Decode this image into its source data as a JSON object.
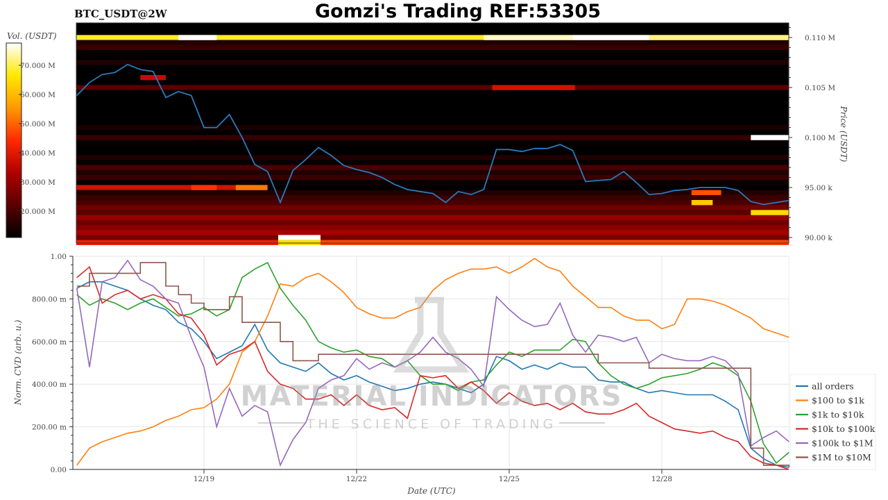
{
  "title": "Gomzi's Trading REF:53305",
  "subtitle": "BTC_USDT@2W",
  "watermark": {
    "line1": "MATERIAL INDICATORS",
    "line2": "THE SCIENCE OF TRADING",
    "icon": "flask-icon"
  },
  "chart_data": [
    {
      "type": "heatmap",
      "ylabel": "Price (USDT)",
      "colorbar_label": "Vol. (USDT)",
      "colorbar_ticks": [
        "20.000 M",
        "30.000 M",
        "40.000 M",
        "50.000 M",
        "60.000 M",
        "70.000 M"
      ],
      "colorbar_range_M": [
        11,
        77.6
      ],
      "colorscale": [
        "#000000",
        "#5a0000",
        "#b00000",
        "#ff2a00",
        "#ff9a00",
        "#ffe800",
        "#ffffff"
      ],
      "ylim_k": [
        89.4,
        111.5
      ],
      "yticks": [
        {
          "value": 110,
          "label": "0.110 M"
        },
        {
          "value": 105,
          "label": "0.105 M"
        },
        {
          "value": 100,
          "label": "0.100 M"
        },
        {
          "value": 95,
          "label": "95.00 k"
        },
        {
          "value": 90,
          "label": "90.00 k"
        }
      ],
      "xlim": [
        "12-16 12:00",
        "12-30 12:00"
      ],
      "levels_k": [
        111.0,
        110.5,
        110.0,
        109.5,
        109.0,
        108.5,
        108.0,
        107.5,
        107.0,
        106.5,
        106.0,
        105.5,
        105.0,
        104.5,
        104.0,
        103.5,
        103.0,
        102.5,
        102.0,
        101.5,
        101.0,
        100.5,
        100.0,
        99.5,
        99.0,
        98.5,
        98.0,
        97.5,
        97.0,
        96.5,
        96.0,
        95.5,
        95.0,
        94.5,
        94.0,
        93.5,
        93.0,
        92.5,
        92.0,
        91.5,
        91.0,
        90.5,
        90.0,
        89.5
      ],
      "base_volume_M": [
        8,
        10,
        68,
        15,
        18,
        12,
        10,
        15,
        6,
        8,
        10,
        5,
        22,
        8,
        10,
        5,
        8,
        4,
        10,
        6,
        14,
        8,
        18,
        12,
        10,
        8,
        15,
        12,
        20,
        15,
        18,
        12,
        38,
        15,
        18,
        20,
        25,
        22,
        30,
        25,
        28,
        32,
        26,
        42
      ],
      "segments": [
        {
          "level": 110.0,
          "from": "12-18 12:00",
          "to": "12-19 06:00",
          "volume_M": 80
        },
        {
          "level": 110.0,
          "from": "12-24 12:00",
          "to": "12-26 06:00",
          "volume_M": 75
        },
        {
          "level": 110.0,
          "from": "12-26 06:00",
          "to": "12-27 18:00",
          "volume_M": 80
        },
        {
          "level": 110.0,
          "from": "12-27 18:00",
          "to": "12-30 12:00",
          "volume_M": 72
        },
        {
          "level": 105.0,
          "from": "12-24 16:00",
          "to": "12-26 07:00",
          "volume_M": 38
        },
        {
          "level": 106.0,
          "from": "12-17 18:00",
          "to": "12-18 06:00",
          "volume_M": 36
        },
        {
          "level": 100.0,
          "from": "12-29 18:00",
          "to": "12-30 12:00",
          "volume_M": 80
        },
        {
          "level": 95.0,
          "from": "12-18 18:00",
          "to": "12-19 06:00",
          "volume_M": 45
        },
        {
          "level": 95.0,
          "from": "12-19 15:00",
          "to": "12-20 06:00",
          "volume_M": 52
        },
        {
          "level": 95.0,
          "from": "12-20 06:00",
          "to": "12-30 12:00",
          "volume_M": 8
        },
        {
          "level": 94.5,
          "from": "12-28 14:00",
          "to": "12-29 04:00",
          "volume_M": 48
        },
        {
          "level": 93.5,
          "from": "12-28 14:00",
          "to": "12-29 00:00",
          "volume_M": 62
        },
        {
          "level": 92.5,
          "from": "12-29 18:00",
          "to": "12-30 12:00",
          "volume_M": 65
        },
        {
          "level": 90.0,
          "from": "12-20 11:00",
          "to": "12-21 07:00",
          "volume_M": 80
        },
        {
          "level": 89.5,
          "from": "12-20 11:00",
          "to": "12-21 07:00",
          "volume_M": 65
        },
        {
          "level": 89.5,
          "from": "12-21 07:00",
          "to": "12-30 12:00",
          "volume_M": 47
        }
      ],
      "price_series": {
        "color": "#2b7bba",
        "x": [
          "12-16 12:00",
          "12-16 18:00",
          "12-17 00:00",
          "12-17 06:00",
          "12-17 12:00",
          "12-17 18:00",
          "12-18 00:00",
          "12-18 06:00",
          "12-18 12:00",
          "12-18 18:00",
          "12-19 00:00",
          "12-19 06:00",
          "12-19 12:00",
          "12-19 18:00",
          "12-20 00:00",
          "12-20 06:00",
          "12-20 12:00",
          "12-20 18:00",
          "12-21 00:00",
          "12-21 06:00",
          "12-21 12:00",
          "12-21 18:00",
          "12-22 00:00",
          "12-22 06:00",
          "12-22 12:00",
          "12-22 18:00",
          "12-23 00:00",
          "12-23 06:00",
          "12-23 12:00",
          "12-23 18:00",
          "12-24 00:00",
          "12-24 06:00",
          "12-24 12:00",
          "12-24 18:00",
          "12-25 00:00",
          "12-25 06:00",
          "12-25 12:00",
          "12-25 18:00",
          "12-26 00:00",
          "12-26 06:00",
          "12-26 12:00",
          "12-26 18:00",
          "12-27 00:00",
          "12-27 06:00",
          "12-27 12:00",
          "12-27 18:00",
          "12-28 00:00",
          "12-28 06:00",
          "12-28 12:00",
          "12-28 18:00",
          "12-29 00:00",
          "12-29 06:00",
          "12-29 12:00",
          "12-29 18:00",
          "12-30 00:00",
          "12-30 06:00",
          "12-30 12:00"
        ],
        "values_k": [
          104.2,
          105.5,
          106.3,
          106.5,
          107.3,
          106.8,
          106.6,
          104.0,
          104.6,
          104.2,
          101.0,
          101.0,
          102.3,
          100.0,
          97.3,
          96.6,
          93.5,
          96.7,
          97.8,
          99.0,
          98.2,
          97.2,
          96.8,
          96.5,
          96.0,
          95.3,
          94.8,
          94.6,
          94.4,
          93.5,
          94.6,
          94.3,
          94.8,
          98.8,
          98.8,
          98.6,
          98.9,
          98.9,
          99.3,
          98.7,
          95.6,
          95.7,
          95.8,
          96.6,
          95.5,
          94.3,
          94.4,
          94.7,
          94.8,
          95.0,
          95.0,
          95.0,
          94.7,
          93.6,
          93.3,
          93.5,
          93.7
        ]
      }
    },
    {
      "type": "line",
      "xlabel": "Date (UTC)",
      "ylabel": "Norm. CVD (arb. u.)",
      "ylim": [
        0,
        1
      ],
      "yticks": [
        {
          "value": 1,
          "label": "1.00"
        },
        {
          "value": 0.8,
          "label": "800.00 m"
        },
        {
          "value": 0.6,
          "label": "600.00 m"
        },
        {
          "value": 0.4,
          "label": "400.00 m"
        },
        {
          "value": 0.2,
          "label": "200.00 m"
        },
        {
          "value": 0,
          "label": "0.00"
        }
      ],
      "xticks": [
        {
          "value": "12-19 00:00",
          "label": "12/19"
        },
        {
          "value": "12-22 00:00",
          "label": "12/22"
        },
        {
          "value": "12-25 00:00",
          "label": "12/25"
        },
        {
          "value": "12-28 00:00",
          "label": "12/28"
        }
      ],
      "xlim": [
        "12-16 10:00",
        "12-30 12:00"
      ],
      "grid": true,
      "legend": "right",
      "x": [
        "12-16 12:00",
        "12-16 18:00",
        "12-17 00:00",
        "12-17 06:00",
        "12-17 12:00",
        "12-17 18:00",
        "12-18 00:00",
        "12-18 06:00",
        "12-18 12:00",
        "12-18 18:00",
        "12-19 00:00",
        "12-19 06:00",
        "12-19 12:00",
        "12-19 18:00",
        "12-20 00:00",
        "12-20 06:00",
        "12-20 12:00",
        "12-20 18:00",
        "12-21 00:00",
        "12-21 06:00",
        "12-21 12:00",
        "12-21 18:00",
        "12-22 00:00",
        "12-22 06:00",
        "12-22 12:00",
        "12-22 18:00",
        "12-23 00:00",
        "12-23 06:00",
        "12-23 12:00",
        "12-23 18:00",
        "12-24 00:00",
        "12-24 06:00",
        "12-24 12:00",
        "12-24 18:00",
        "12-25 00:00",
        "12-25 06:00",
        "12-25 12:00",
        "12-25 18:00",
        "12-26 00:00",
        "12-26 06:00",
        "12-26 12:00",
        "12-26 18:00",
        "12-27 00:00",
        "12-27 06:00",
        "12-27 12:00",
        "12-27 18:00",
        "12-28 00:00",
        "12-28 06:00",
        "12-28 12:00",
        "12-28 18:00",
        "12-29 00:00",
        "12-29 06:00",
        "12-29 12:00",
        "12-29 18:00",
        "12-30 00:00",
        "12-30 06:00",
        "12-30 12:00"
      ],
      "series": [
        {
          "name": "all orders",
          "color": "#1f77b4",
          "values": [
            0.85,
            0.88,
            0.88,
            0.86,
            0.84,
            0.8,
            0.77,
            0.75,
            0.69,
            0.66,
            0.6,
            0.52,
            0.55,
            0.58,
            0.68,
            0.56,
            0.5,
            0.48,
            0.46,
            0.5,
            0.45,
            0.42,
            0.44,
            0.41,
            0.39,
            0.37,
            0.38,
            0.4,
            0.41,
            0.4,
            0.38,
            0.36,
            0.4,
            0.53,
            0.51,
            0.47,
            0.49,
            0.47,
            0.5,
            0.48,
            0.48,
            0.42,
            0.41,
            0.41,
            0.38,
            0.36,
            0.37,
            0.36,
            0.35,
            0.35,
            0.35,
            0.32,
            0.28,
            0.1,
            0.05,
            0.02,
            0.01
          ]
        },
        {
          "name": "$100 to $1k",
          "color": "#ff7f0e",
          "values": [
            0.02,
            0.1,
            0.13,
            0.15,
            0.17,
            0.18,
            0.2,
            0.23,
            0.25,
            0.28,
            0.29,
            0.33,
            0.4,
            0.55,
            0.6,
            0.72,
            0.87,
            0.86,
            0.9,
            0.92,
            0.88,
            0.83,
            0.76,
            0.73,
            0.71,
            0.71,
            0.74,
            0.76,
            0.84,
            0.89,
            0.92,
            0.94,
            0.94,
            0.95,
            0.92,
            0.95,
            0.99,
            0.95,
            0.93,
            0.86,
            0.81,
            0.76,
            0.76,
            0.72,
            0.7,
            0.7,
            0.66,
            0.68,
            0.8,
            0.8,
            0.79,
            0.77,
            0.74,
            0.71,
            0.66,
            0.64,
            0.62
          ]
        },
        {
          "name": "$1k to $10k",
          "color": "#2ca02c",
          "values": [
            0.82,
            0.77,
            0.8,
            0.78,
            0.75,
            0.78,
            0.8,
            0.76,
            0.72,
            0.73,
            0.76,
            0.72,
            0.75,
            0.9,
            0.94,
            0.97,
            0.85,
            0.77,
            0.7,
            0.6,
            0.57,
            0.55,
            0.56,
            0.53,
            0.52,
            0.48,
            0.51,
            0.44,
            0.4,
            0.4,
            0.37,
            0.41,
            0.42,
            0.49,
            0.55,
            0.53,
            0.56,
            0.56,
            0.56,
            0.61,
            0.6,
            0.5,
            0.44,
            0.4,
            0.38,
            0.4,
            0.43,
            0.44,
            0.45,
            0.47,
            0.5,
            0.48,
            0.44,
            0.32,
            0.12,
            0.03,
            0.08
          ]
        },
        {
          "name": "$10k to $100k",
          "color": "#d62728",
          "values": [
            0.9,
            0.95,
            0.78,
            0.82,
            0.84,
            0.8,
            0.82,
            0.8,
            0.73,
            0.71,
            0.63,
            0.49,
            0.54,
            0.56,
            0.6,
            0.46,
            0.4,
            0.38,
            0.33,
            0.33,
            0.35,
            0.3,
            0.35,
            0.3,
            0.28,
            0.29,
            0.24,
            0.44,
            0.43,
            0.44,
            0.38,
            0.41,
            0.37,
            0.31,
            0.36,
            0.32,
            0.3,
            0.31,
            0.28,
            0.31,
            0.27,
            0.26,
            0.26,
            0.28,
            0.31,
            0.25,
            0.22,
            0.19,
            0.18,
            0.17,
            0.18,
            0.15,
            0.13,
            0.06,
            0.03,
            0.02,
            0.0
          ]
        },
        {
          "name": "$100k to $1M",
          "color": "#9467bd",
          "values": [
            0.85,
            0.48,
            0.88,
            0.9,
            0.98,
            0.89,
            0.86,
            0.8,
            0.78,
            0.62,
            0.48,
            0.2,
            0.38,
            0.25,
            0.3,
            0.27,
            0.02,
            0.14,
            0.22,
            0.38,
            0.42,
            0.44,
            0.52,
            0.47,
            0.5,
            0.48,
            0.51,
            0.55,
            0.62,
            0.55,
            0.52,
            0.47,
            0.39,
            0.81,
            0.75,
            0.7,
            0.67,
            0.68,
            0.78,
            0.63,
            0.55,
            0.63,
            0.62,
            0.6,
            0.62,
            0.5,
            0.54,
            0.52,
            0.51,
            0.51,
            0.53,
            0.51,
            0.45,
            0.11,
            0.15,
            0.18,
            0.13
          ]
        },
        {
          "name": "$1M to $10M",
          "color": "#8c564b",
          "step": true,
          "values": [
            0.86,
            0.92,
            0.92,
            0.92,
            0.92,
            0.97,
            0.97,
            0.86,
            0.82,
            0.78,
            0.75,
            0.75,
            0.81,
            0.69,
            0.69,
            0.69,
            0.6,
            0.51,
            0.51,
            0.54,
            0.54,
            0.54,
            0.54,
            0.54,
            0.54,
            0.54,
            0.54,
            0.54,
            0.54,
            0.54,
            0.54,
            0.54,
            0.54,
            0.54,
            0.54,
            0.54,
            0.54,
            0.54,
            0.54,
            0.54,
            0.54,
            0.5,
            0.5,
            0.5,
            0.5,
            0.475,
            0.475,
            0.475,
            0.475,
            0.475,
            0.475,
            0.475,
            0.475,
            0.1,
            0.02,
            0.02,
            0.01
          ]
        }
      ]
    }
  ]
}
